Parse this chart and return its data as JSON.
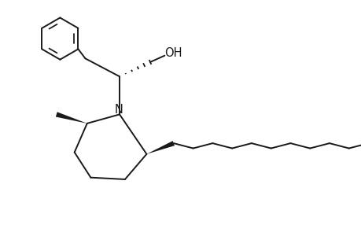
{
  "background": "#ffffff",
  "line_color": "#1a1a1a",
  "line_width": 1.4,
  "xlim": [
    -0.5,
    9.5
  ],
  "ylim": [
    0.0,
    6.0
  ]
}
